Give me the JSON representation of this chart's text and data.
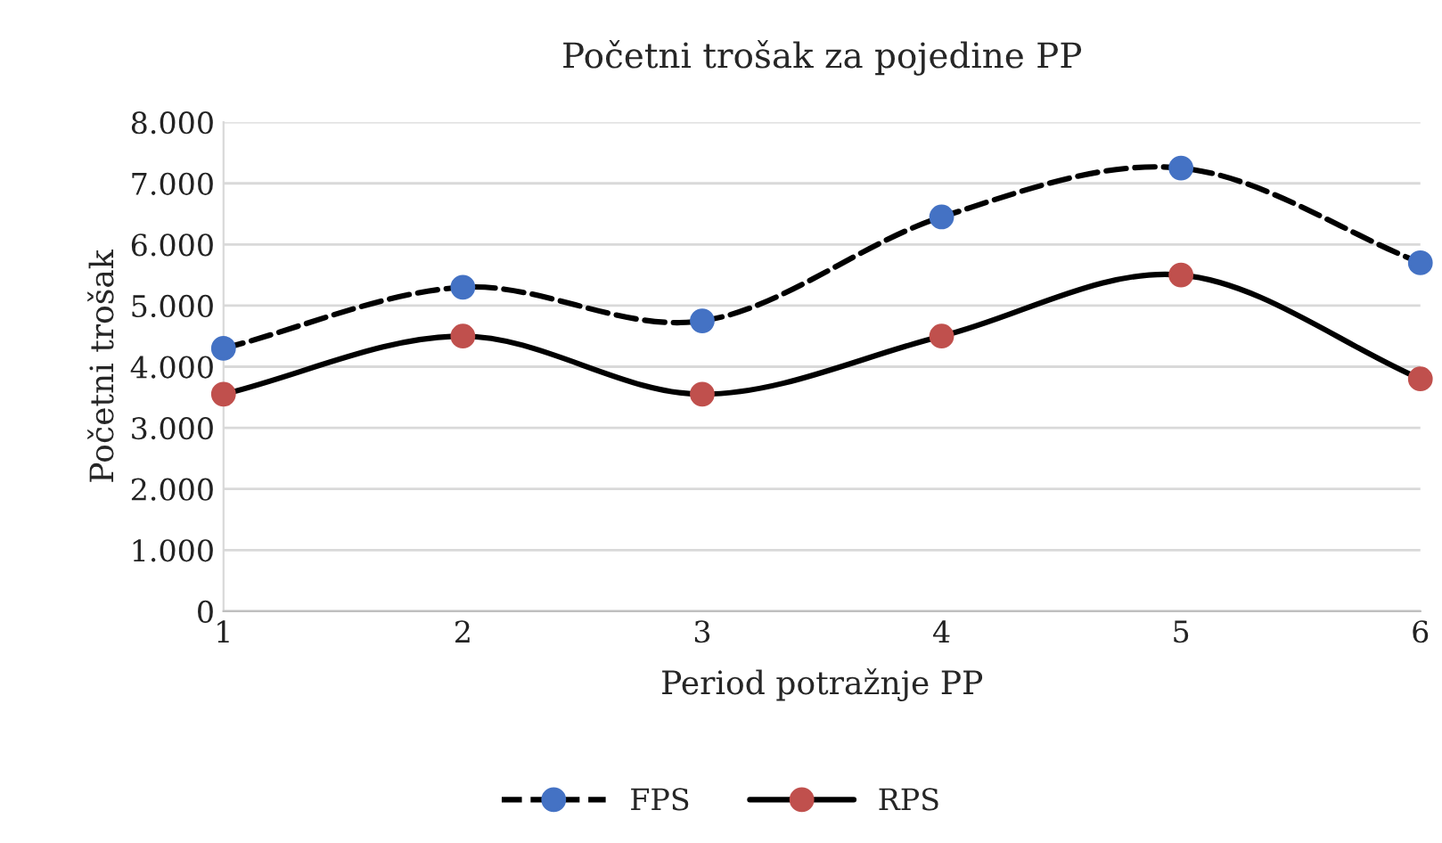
{
  "chart_data": {
    "type": "line",
    "title": "Početni trošak za pojedine PP",
    "xlabel": "Period potražnje PP",
    "ylabel": "Početni trošak",
    "x": [
      1,
      2,
      3,
      4,
      5,
      6
    ],
    "series": [
      {
        "name": "FPS",
        "color": "#4472c4",
        "line_style": "dashed",
        "values": [
          4300,
          5300,
          4750,
          6450,
          7250,
          5700
        ]
      },
      {
        "name": "RPS",
        "color": "#c0504d",
        "line_style": "solid",
        "values": [
          3550,
          4500,
          3550,
          4500,
          5500,
          3800
        ]
      }
    ],
    "xlim": [
      1,
      6
    ],
    "xticks": [
      1,
      2,
      3,
      4,
      5,
      6
    ],
    "ylim": [
      0,
      8000
    ],
    "yticks": [
      0,
      {
        "value": 1000,
        "label": "1.000"
      },
      {
        "value": 2000,
        "label": "2.000"
      },
      {
        "value": 3000,
        "label": "3.000"
      },
      {
        "value": 4000,
        "label": "4.000"
      },
      {
        "value": 5000,
        "label": "5.000"
      },
      {
        "value": 6000,
        "label": "6.000"
      },
      {
        "value": 7000,
        "label": "7.000"
      },
      {
        "value": 8000,
        "label": "8.000"
      }
    ],
    "grid": "y",
    "legend": "bottom",
    "marker": "circle"
  }
}
